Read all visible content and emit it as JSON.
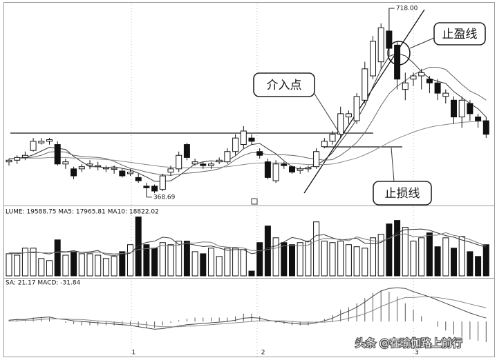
{
  "chart_data": [
    {
      "type": "candlestick",
      "ohlc": {
        "open": [
          434,
          437,
          442,
          455,
          469,
          472,
          466,
          430,
          421,
          421,
          427,
          425,
          421,
          420,
          417,
          412,
          405,
          389,
          389,
          383,
          415,
          421,
          466,
          430,
          430,
          427,
          434,
          434,
          453,
          466,
          478,
          453,
          434,
          399,
          430,
          425,
          418,
          421,
          425,
          462,
          472,
          485,
          517,
          510,
          548,
          593,
          619,
          676,
          650,
          568,
          587,
          593,
          587,
          580,
          555,
          548,
          517,
          542,
          517,
          510
        ],
        "high": [
          440,
          446,
          453,
          478,
          478,
          478,
          472,
          440,
          425,
          430,
          437,
          434,
          427,
          427,
          421,
          421,
          412,
          395,
          392,
          412,
          427,
          453,
          469,
          440,
          434,
          434,
          442,
          459,
          485,
          500,
          485,
          459,
          440,
          437,
          434,
          427,
          425,
          427,
          459,
          478,
          491,
          536,
          529,
          561,
          619,
          667,
          690,
          718,
          657,
          599,
          599,
          606,
          593,
          587,
          568,
          555,
          555,
          548,
          523,
          517
        ],
        "low": [
          427,
          430,
          437,
          453,
          466,
          466,
          427,
          421,
          402,
          415,
          421,
          418,
          415,
          412,
          405,
          408,
          395,
          368.69,
          376,
          380,
          408,
          415,
          437,
          427,
          421,
          421,
          430,
          430,
          446,
          459,
          466,
          440,
          402,
          395,
          421,
          412,
          412,
          415,
          421,
          459,
          466,
          478,
          504,
          504,
          542,
          587,
          606,
          630,
          568,
          548,
          574,
          568,
          561,
          548,
          542,
          504,
          497,
          510,
          497,
          478
        ],
        "close": [
          437,
          442,
          446,
          472,
          472,
          475,
          430,
          434,
          408,
          425,
          430,
          427,
          423,
          422,
          408,
          415,
          399,
          386,
          380,
          408,
          421,
          446,
          442,
          434,
          427,
          430,
          437,
          453,
          478,
          491,
          472,
          446,
          405,
          430,
          427,
          415,
          421,
          423,
          453,
          472,
          485,
          523,
          523,
          555,
          606,
          657,
          682,
          644,
          587,
          580,
          593,
          599,
          580,
          561,
          561,
          517,
          548,
          523,
          510,
          485
        ]
      },
      "lines": [
        {
          "color": "#333333",
          "values": [
            440,
            441,
            442,
            447,
            454,
            461,
            459,
            457,
            444,
            434,
            425,
            425,
            423,
            425,
            422,
            419,
            413,
            406,
            398,
            398,
            399,
            408,
            419,
            430,
            434,
            436,
            434,
            436,
            445,
            458,
            466,
            468,
            458,
            449,
            436,
            425,
            420,
            423,
            428,
            437,
            451,
            471,
            491,
            512,
            538,
            573,
            605,
            629,
            635,
            630,
            617,
            601,
            588,
            583,
            579,
            564,
            553,
            542,
            532,
            517
          ]
        },
        {
          "color": "#666666",
          "values": [
            440,
            440,
            441,
            443,
            446,
            452,
            453,
            452,
            446,
            444,
            443,
            442,
            440,
            435,
            428,
            422,
            419,
            415,
            412,
            410,
            409,
            411,
            413,
            414,
            416,
            418,
            421,
            428,
            438,
            446,
            451,
            451,
            447,
            447,
            447,
            446,
            444,
            441,
            439,
            437,
            438,
            446,
            457,
            470,
            488,
            512,
            538,
            560,
            574,
            584,
            595,
            603,
            609,
            609,
            605,
            591,
            577,
            565,
            558,
            548
          ]
        },
        {
          "color": "#888888",
          "values": [
            440,
            440,
            441,
            441,
            441,
            442,
            442,
            442,
            441,
            441,
            440,
            439,
            438,
            437,
            435,
            433,
            431,
            429,
            427,
            425,
            424,
            423,
            423,
            423,
            423,
            424,
            424,
            425,
            427,
            429,
            431,
            432,
            432,
            432,
            432,
            431,
            430,
            429,
            429,
            429,
            430,
            433,
            437,
            441,
            447,
            454,
            462,
            470,
            477,
            483,
            489,
            494,
            498,
            501,
            503,
            505,
            507,
            508,
            509,
            510
          ]
        }
      ],
      "ylim": [
        357,
        727
      ],
      "max_label": "718.00",
      "min_label": "368.69",
      "annotations": [
        "介入点",
        "止盈线",
        "止损线"
      ]
    },
    {
      "type": "bar",
      "header": "LUME: 19588.75  MA5: 17965.81  MA10: 18822.02",
      "values": [
        13900,
        13000,
        17400,
        17400,
        10900,
        9600,
        22600,
        13000,
        15200,
        13900,
        13900,
        13000,
        10900,
        12200,
        15200,
        19600,
        37000,
        19600,
        17400,
        20900,
        19600,
        21800,
        21800,
        15200,
        13900,
        17400,
        12200,
        17400,
        17400,
        16500,
        3000,
        20900,
        31300,
        23900,
        20900,
        19600,
        20900,
        21800,
        33900,
        21800,
        20900,
        21800,
        19600,
        18300,
        17400,
        23900,
        26100,
        32600,
        34800,
        30500,
        21800,
        23900,
        27000,
        18300,
        23900,
        17400,
        24800,
        15200,
        12200,
        19588.75
      ],
      "lines": [
        {
          "color": "#333333",
          "values": [
            14000,
            14000,
            14500,
            15000,
            14500,
            13700,
            15400,
            15100,
            15800,
            14700,
            15100,
            15900,
            13200,
            12800,
            13300,
            14200,
            19000,
            21000,
            21800,
            24300,
            23700,
            19700,
            20200,
            19400,
            18400,
            18800,
            17500,
            16000,
            16500,
            16500,
            13900,
            14800,
            17700,
            18800,
            21300,
            24100,
            23100,
            21200,
            25400,
            25800,
            23800,
            22500,
            23000,
            23700,
            20500,
            20100,
            21000,
            24000,
            27200,
            29000,
            29200,
            29400,
            28600,
            26900,
            25300,
            24300,
            22500,
            21200,
            19500,
            17965.81
          ]
        },
        {
          "color": "#777777",
          "values": [
            14500,
            14500,
            14500,
            14500,
            14500,
            14400,
            14700,
            14800,
            15200,
            14600,
            14400,
            15000,
            14200,
            13800,
            14100,
            14600,
            16600,
            17100,
            17300,
            19300,
            19000,
            19300,
            20700,
            20600,
            21300,
            21100,
            18600,
            18100,
            17900,
            17500,
            15900,
            15800,
            16600,
            17400,
            18900,
            19000,
            18900,
            19400,
            22000,
            23500,
            23400,
            22800,
            22100,
            24500,
            23100,
            22000,
            21700,
            23500,
            25600,
            26400,
            24700,
            24800,
            25400,
            25600,
            27100,
            25400,
            24500,
            22800,
            20800,
            18822.02
          ]
        }
      ],
      "ylim": [
        0,
        42000
      ]
    },
    {
      "type": "macd",
      "header": "SA: 21.17  MACD: -31.84",
      "categories": [
        null,
        null,
        null,
        null,
        null,
        null,
        null,
        null,
        null,
        null,
        null,
        null,
        null,
        null,
        null,
        "1",
        null,
        null,
        null,
        null,
        null,
        null,
        null,
        null,
        null,
        null,
        null,
        null,
        null,
        null,
        null,
        "2",
        null,
        null,
        null,
        null,
        null,
        null,
        null,
        null,
        null,
        null,
        null,
        null,
        null,
        null,
        null,
        null,
        null,
        null,
        "3",
        null,
        null,
        null,
        null,
        null,
        null,
        null,
        null,
        null
      ],
      "dif": [
        2,
        3,
        3,
        5,
        6,
        7,
        4,
        3,
        1,
        0,
        -1,
        -2,
        -3,
        -4,
        -5,
        -6,
        -8,
        -10,
        -12,
        -11,
        -9,
        -7,
        -5,
        -4,
        -3,
        -2,
        -1,
        0,
        2,
        5,
        6,
        5,
        2,
        0,
        -1,
        -3,
        -4,
        -4,
        -2,
        1,
        5,
        11,
        16,
        22,
        30,
        39,
        47,
        51,
        52,
        51,
        46,
        42,
        38,
        33,
        28,
        23,
        18,
        13,
        9,
        5.25
      ],
      "dea": [
        1,
        1,
        2,
        2,
        3,
        4,
        4,
        4,
        3,
        3,
        2,
        1,
        0,
        -1,
        -2,
        -3,
        -4,
        -5,
        -7,
        -8,
        -8,
        -8,
        -7,
        -7,
        -6,
        -5,
        -4,
        -3,
        -2,
        -1,
        0,
        1,
        1,
        1,
        1,
        0,
        -1,
        -1,
        -1,
        -1,
        0,
        2,
        5,
        8,
        12,
        17,
        23,
        28,
        33,
        37,
        37,
        38,
        38,
        37,
        35,
        33,
        30,
        27,
        24,
        21.17
      ],
      "macd": [
        2,
        4,
        2,
        6,
        6,
        6,
        0,
        -2,
        -4,
        -6,
        -6,
        -6,
        -6,
        -6,
        -6,
        -6,
        -8,
        -10,
        -10,
        -6,
        -2,
        2,
        4,
        6,
        6,
        6,
        6,
        6,
        8,
        12,
        12,
        8,
        2,
        -2,
        -4,
        -6,
        -6,
        -6,
        -2,
        4,
        10,
        18,
        22,
        28,
        36,
        44,
        48,
        46,
        38,
        28,
        18,
        8,
        0,
        -8,
        -14,
        -20,
        -24,
        -28,
        -30,
        -31.84
      ],
      "dif_color": "#444444",
      "dea_color": "#888888",
      "bar_color": "#555555",
      "ylim": [
        -52,
        64
      ]
    }
  ],
  "watermark": "头条 @在瑜伽路上前行"
}
